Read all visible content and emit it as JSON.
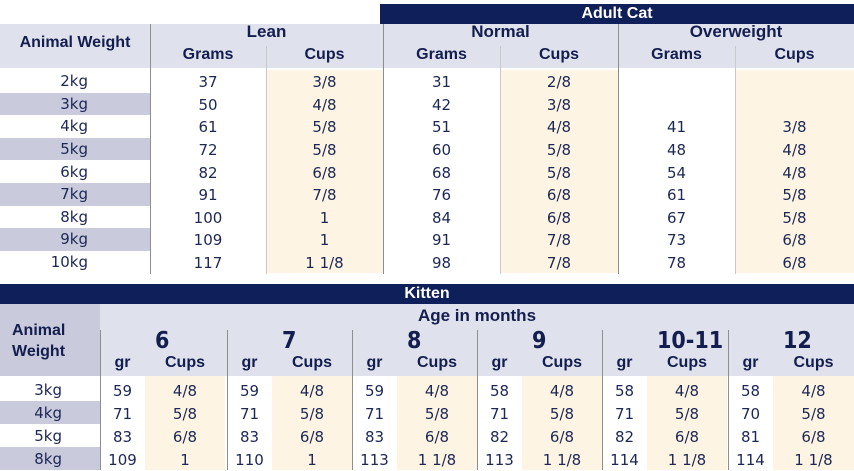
{
  "adult": {
    "title": "Adult Cat",
    "weight_header": "Animal Weight",
    "groups": [
      {
        "name": "Lean",
        "grams_label": "Grams",
        "cups_label": "Cups"
      },
      {
        "name": "Normal",
        "grams_label": "Grams",
        "cups_label": "Cups"
      },
      {
        "name": "Overweight",
        "grams_label": "Grams",
        "cups_label": "Cups"
      }
    ],
    "rows": [
      {
        "weight": "2kg",
        "values": [
          "37",
          "3/8",
          "31",
          "2/8",
          "",
          ""
        ]
      },
      {
        "weight": "3kg",
        "values": [
          "50",
          "4/8",
          "42",
          "3/8",
          "",
          ""
        ]
      },
      {
        "weight": "4kg",
        "values": [
          "61",
          "5/8",
          "51",
          "4/8",
          "41",
          "3/8"
        ]
      },
      {
        "weight": "5kg",
        "values": [
          "72",
          "5/8",
          "60",
          "5/8",
          "48",
          "4/8"
        ]
      },
      {
        "weight": "6kg",
        "values": [
          "82",
          "6/8",
          "68",
          "5/8",
          "54",
          "4/8"
        ]
      },
      {
        "weight": "7kg",
        "values": [
          "91",
          "7/8",
          "76",
          "6/8",
          "61",
          "5/8"
        ]
      },
      {
        "weight": "8kg",
        "values": [
          "100",
          "1",
          "84",
          "6/8",
          "67",
          "5/8"
        ]
      },
      {
        "weight": "9kg",
        "values": [
          "109",
          "1",
          "91",
          "7/8",
          "73",
          "6/8"
        ]
      },
      {
        "weight": "10kg",
        "values": [
          "117",
          "1 1/8",
          "98",
          "7/8",
          "78",
          "6/8"
        ]
      }
    ]
  },
  "kitten": {
    "title": "Kitten",
    "weight_header_line1": "Animal",
    "weight_header_line2": "Weight",
    "age_title": "Age in months",
    "ages": [
      {
        "age": "6",
        "gr_label": "gr",
        "cups_label": "Cups"
      },
      {
        "age": "7",
        "gr_label": "gr",
        "cups_label": "Cups"
      },
      {
        "age": "8",
        "gr_label": "gr",
        "cups_label": "Cups"
      },
      {
        "age": "9",
        "gr_label": "gr",
        "cups_label": "Cups"
      },
      {
        "age": "10-11",
        "gr_label": "gr",
        "cups_label": "Cups"
      },
      {
        "age": "12",
        "gr_label": "gr",
        "cups_label": "Cups"
      }
    ],
    "rows": [
      {
        "weight": "3kg",
        "values": [
          "59",
          "4/8",
          "59",
          "4/8",
          "59",
          "4/8",
          "58",
          "4/8",
          "58",
          "4/8",
          "58",
          "4/8"
        ]
      },
      {
        "weight": "4kg",
        "values": [
          "71",
          "5/8",
          "71",
          "5/8",
          "71",
          "5/8",
          "71",
          "5/8",
          "71",
          "5/8",
          "70",
          "5/8"
        ]
      },
      {
        "weight": "5kg",
        "values": [
          "83",
          "6/8",
          "83",
          "6/8",
          "83",
          "6/8",
          "82",
          "6/8",
          "82",
          "6/8",
          "81",
          "6/8"
        ]
      },
      {
        "weight": "8kg",
        "values": [
          "109",
          "1",
          "110",
          "1",
          "113",
          "1 1/8",
          "113",
          "1 1/8",
          "114",
          "1 1/8",
          "114",
          "1 1/8"
        ]
      }
    ]
  },
  "colors": {
    "band": "#0f1f5a",
    "header_bg": "#dfe1ec",
    "weight_stripe": "#c9cbdc",
    "cups_stripe": "#fdf4e3",
    "text": "#1c2754"
  }
}
